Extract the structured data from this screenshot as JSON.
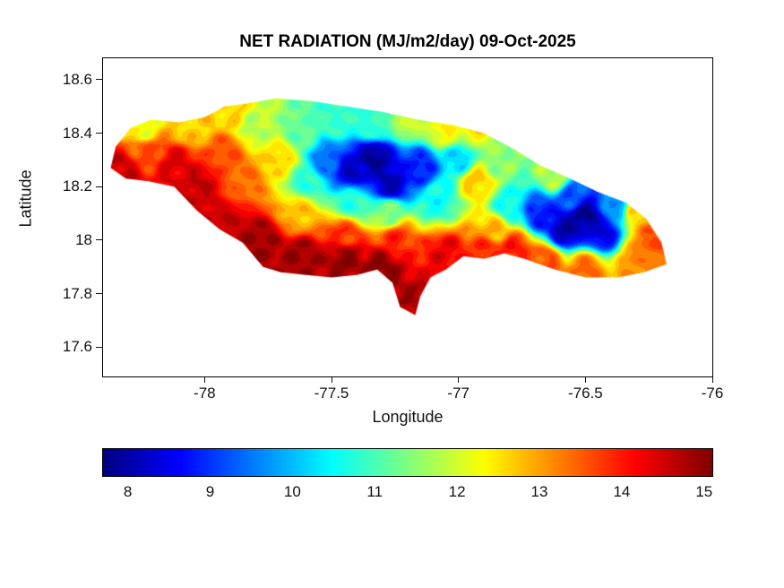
{
  "figure": {
    "background": "#ffffff",
    "text_color": "#111111"
  },
  "chart_data": {
    "type": "heatmap",
    "title": "NET RADIATION (MJ/m2/day) 09-Oct-2025",
    "xlabel": "Longitude",
    "ylabel": "Latitude",
    "region": "Jamaica",
    "units": "MJ/m2/day",
    "date": "09-Oct-2025",
    "xlim": [
      -78.4,
      -76.0
    ],
    "ylim": [
      17.49,
      18.68
    ],
    "xticks": [
      -78,
      -77.5,
      -77,
      -76.5,
      -76
    ],
    "yticks": [
      17.6,
      17.8,
      18,
      18.2,
      18.4,
      18.6
    ],
    "grid": false,
    "colormap": "jet",
    "colorbar": {
      "orientation": "horizontal",
      "limits": [
        7.7,
        15.1
      ],
      "ticks": [
        8,
        9,
        10,
        11,
        12,
        13,
        14,
        15
      ]
    },
    "boundary_lonlat": [
      [
        -78.37,
        18.27
      ],
      [
        -78.35,
        18.35
      ],
      [
        -78.29,
        18.42
      ],
      [
        -78.21,
        18.45
      ],
      [
        -78.1,
        18.44
      ],
      [
        -78.0,
        18.46
      ],
      [
        -77.92,
        18.5
      ],
      [
        -77.84,
        18.51
      ],
      [
        -77.72,
        18.53
      ],
      [
        -77.58,
        18.52
      ],
      [
        -77.44,
        18.5
      ],
      [
        -77.3,
        18.48
      ],
      [
        -77.16,
        18.45
      ],
      [
        -77.02,
        18.43
      ],
      [
        -76.9,
        18.4
      ],
      [
        -76.78,
        18.34
      ],
      [
        -76.68,
        18.28
      ],
      [
        -76.56,
        18.23
      ],
      [
        -76.45,
        18.18
      ],
      [
        -76.34,
        18.14
      ],
      [
        -76.26,
        18.08
      ],
      [
        -76.2,
        17.99
      ],
      [
        -76.18,
        17.91
      ],
      [
        -76.27,
        17.88
      ],
      [
        -76.37,
        17.86
      ],
      [
        -76.5,
        17.86
      ],
      [
        -76.62,
        17.89
      ],
      [
        -76.74,
        17.93
      ],
      [
        -76.82,
        17.95
      ],
      [
        -76.9,
        17.93
      ],
      [
        -76.98,
        17.94
      ],
      [
        -77.05,
        17.89
      ],
      [
        -77.11,
        17.86
      ],
      [
        -77.15,
        17.79
      ],
      [
        -77.17,
        17.72
      ],
      [
        -77.23,
        17.75
      ],
      [
        -77.26,
        17.84
      ],
      [
        -77.32,
        17.89
      ],
      [
        -77.4,
        17.87
      ],
      [
        -77.5,
        17.86
      ],
      [
        -77.6,
        17.87
      ],
      [
        -77.7,
        17.88
      ],
      [
        -77.77,
        17.9
      ],
      [
        -77.85,
        17.99
      ],
      [
        -77.94,
        18.04
      ],
      [
        -78.03,
        18.11
      ],
      [
        -78.12,
        18.2
      ],
      [
        -78.22,
        18.22
      ],
      [
        -78.31,
        18.23
      ]
    ],
    "field_samples": [
      [
        -78.33,
        18.25,
        14.6
      ],
      [
        -78.22,
        18.33,
        13.6
      ],
      [
        -78.24,
        18.42,
        12.2
      ],
      [
        -78.05,
        18.43,
        12.6
      ],
      [
        -77.9,
        18.48,
        12.6
      ],
      [
        -78.12,
        18.28,
        14.4
      ],
      [
        -78.02,
        18.2,
        14.6
      ],
      [
        -77.92,
        18.32,
        13.6
      ],
      [
        -77.8,
        18.42,
        11.8
      ],
      [
        -77.85,
        18.22,
        13.4
      ],
      [
        -77.92,
        18.06,
        14.6
      ],
      [
        -77.78,
        18.0,
        14.9
      ],
      [
        -77.7,
        18.3,
        12.6
      ],
      [
        -77.62,
        18.4,
        11.2
      ],
      [
        -77.6,
        18.22,
        10.8
      ],
      [
        -77.63,
        18.1,
        12.8
      ],
      [
        -77.62,
        17.94,
        14.9
      ],
      [
        -77.45,
        17.93,
        15.0
      ],
      [
        -77.3,
        17.9,
        15.0
      ],
      [
        -77.18,
        17.76,
        14.8
      ],
      [
        -77.45,
        18.02,
        13.8
      ],
      [
        -77.25,
        18.0,
        13.9
      ],
      [
        -77.05,
        17.94,
        14.3
      ],
      [
        -76.88,
        17.96,
        13.9
      ],
      [
        -77.52,
        18.3,
        9.4
      ],
      [
        -77.42,
        18.26,
        8.2
      ],
      [
        -77.33,
        18.31,
        7.9
      ],
      [
        -77.27,
        18.21,
        8.1
      ],
      [
        -77.15,
        18.27,
        8.8
      ],
      [
        -77.42,
        18.14,
        10.8
      ],
      [
        -77.28,
        18.1,
        11.4
      ],
      [
        -77.08,
        18.16,
        10.6
      ],
      [
        -77.0,
        18.3,
        10.2
      ],
      [
        -77.48,
        18.45,
        10.9
      ],
      [
        -77.33,
        18.43,
        10.9
      ],
      [
        -77.2,
        18.45,
        11.9
      ],
      [
        -77.05,
        18.41,
        12.3
      ],
      [
        -76.93,
        18.42,
        12.4
      ],
      [
        -76.93,
        18.22,
        12.7
      ],
      [
        -76.85,
        18.3,
        11.5
      ],
      [
        -76.8,
        18.12,
        10.5
      ],
      [
        -76.68,
        18.1,
        8.8
      ],
      [
        -76.58,
        18.04,
        8.0
      ],
      [
        -76.5,
        18.09,
        7.8
      ],
      [
        -76.43,
        18.03,
        8.4
      ],
      [
        -76.55,
        18.16,
        9.2
      ],
      [
        -76.38,
        18.12,
        9.8
      ],
      [
        -76.62,
        18.24,
        11.8
      ],
      [
        -76.3,
        18.1,
        12.6
      ],
      [
        -76.24,
        18.01,
        13.6
      ],
      [
        -76.3,
        17.92,
        13.2
      ],
      [
        -76.5,
        17.89,
        13.4
      ],
      [
        -76.66,
        17.92,
        13.6
      ],
      [
        -76.78,
        17.97,
        14.0
      ],
      [
        -76.85,
        18.04,
        12.8
      ]
    ]
  }
}
